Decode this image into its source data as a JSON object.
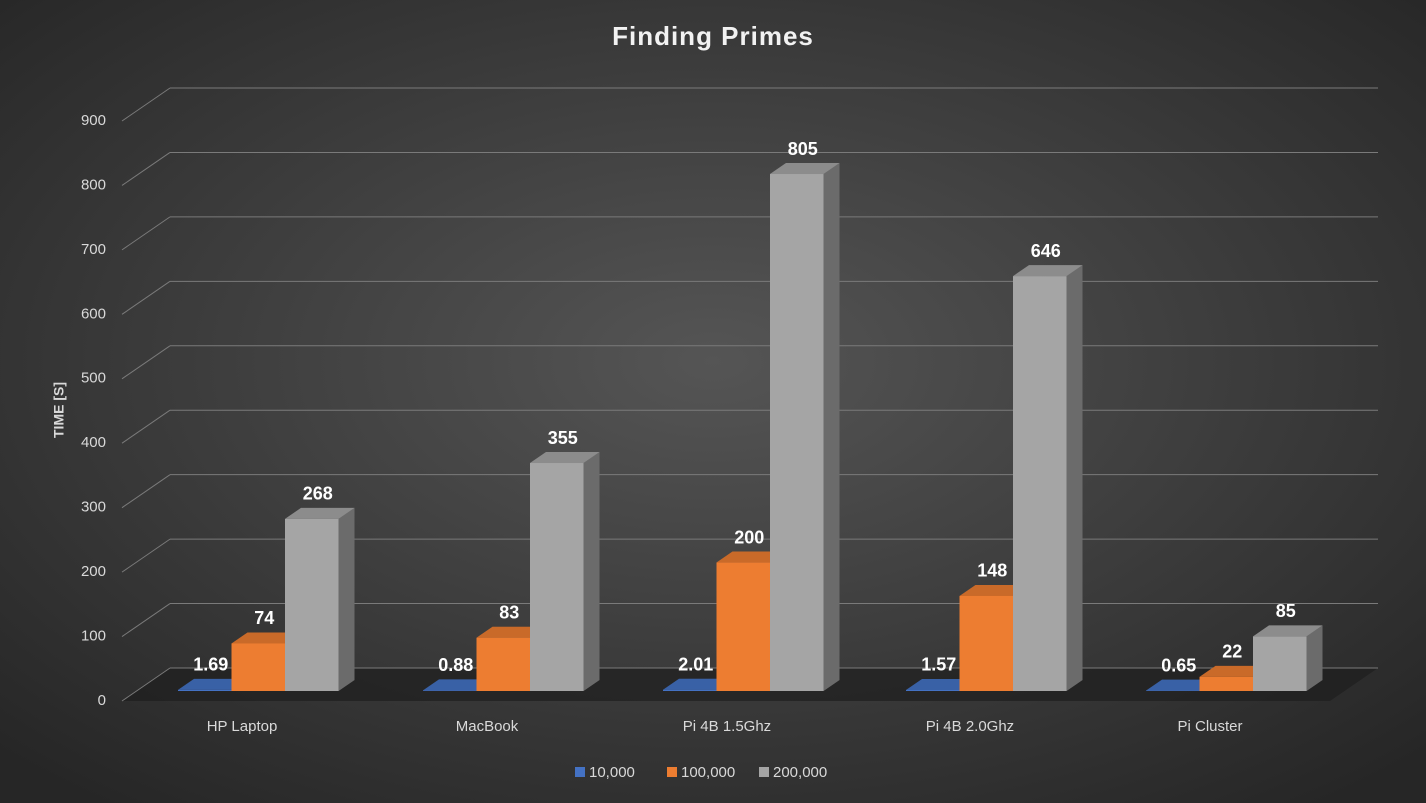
{
  "chart_data": {
    "type": "bar3d",
    "title": "Finding Primes",
    "y_label": "TIME [S]",
    "categories": [
      "HP Laptop",
      "MacBook",
      "Pi 4B 1.5Ghz",
      "Pi 4B 2.0Ghz",
      "Pi Cluster"
    ],
    "series": [
      {
        "name": "10,000",
        "color": "#4472c4",
        "values": [
          1.69,
          0.88,
          2.01,
          1.57,
          0.65
        ]
      },
      {
        "name": "100,000",
        "color": "#ed7d31",
        "values": [
          74,
          83,
          200,
          148,
          22
        ]
      },
      {
        "name": "200,000",
        "color": "#a5a5a5",
        "values": [
          268,
          355,
          805,
          646,
          85
        ]
      }
    ],
    "ylim": [
      0,
      900
    ],
    "yticks": [
      0,
      100,
      200,
      300,
      400,
      500,
      600,
      700,
      800,
      900
    ],
    "grid": true,
    "legend": "bottom"
  }
}
